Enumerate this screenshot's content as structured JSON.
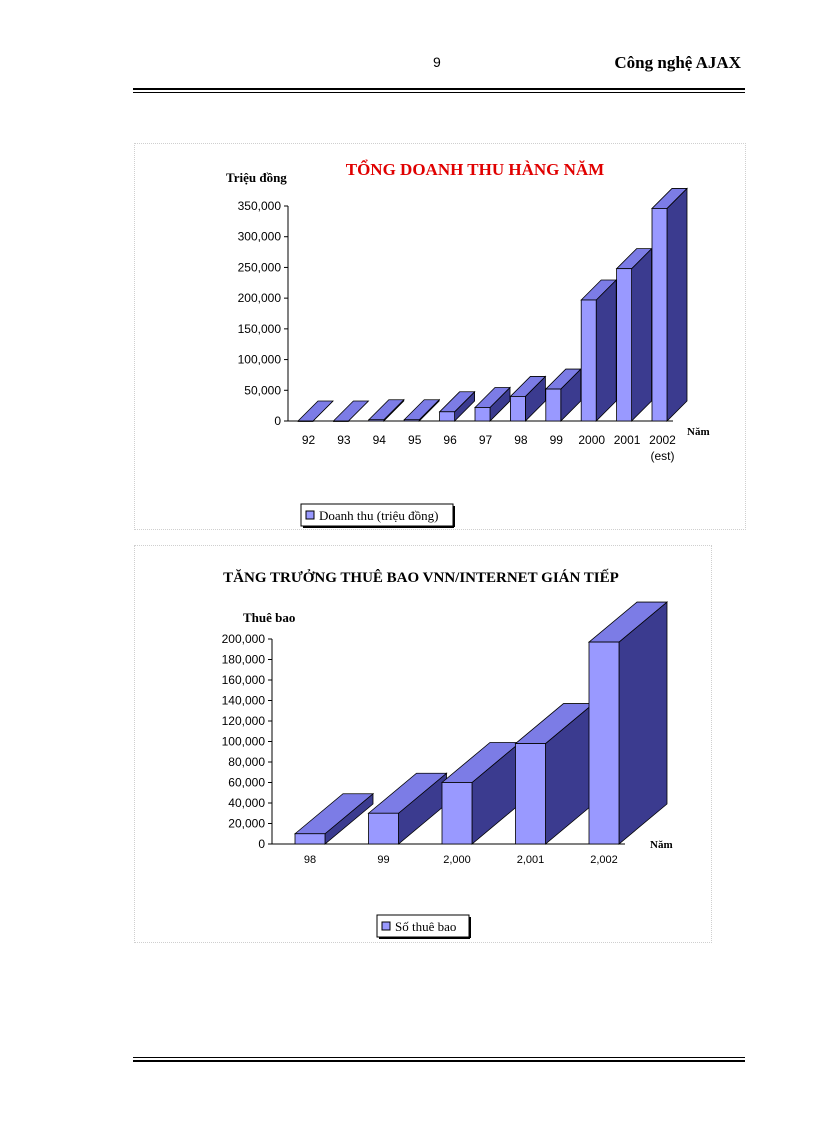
{
  "header": {
    "page_number": "9",
    "title": "Công nghệ AJAX"
  },
  "colors": {
    "bar_front": "#9999ff",
    "bar_top": "#7c7ce6",
    "bar_side": "#3b3b8f",
    "title_red": "#e00000"
  },
  "chart_data": [
    {
      "type": "bar",
      "title": "TỔNG DOANH THU HÀNG NĂM",
      "ylabel": "Triệu đồng",
      "xlabel": "Năm",
      "categories": [
        "92",
        "93",
        "94",
        "95",
        "96",
        "97",
        "98",
        "99",
        "2000",
        "2001",
        "2002\n(est)"
      ],
      "series": [
        {
          "name": "Doanh thu (triệu đồng)",
          "values": [
            0,
            0,
            2000,
            2000,
            15000,
            22000,
            40000,
            52000,
            197000,
            248000,
            346000
          ]
        }
      ],
      "ylim": [
        0,
        350000
      ],
      "yticks": [
        "0",
        "50,000",
        "100,000",
        "150,000",
        "200,000",
        "250,000",
        "300,000",
        "350,000"
      ],
      "legend": "bottom-left",
      "grid": false
    },
    {
      "type": "bar",
      "title": "TĂNG TRƯỞNG THUÊ BAO VNN/INTERNET GIÁN TIẾP",
      "ylabel": "Thuê bao",
      "xlabel": "Năm",
      "categories": [
        "98",
        "99",
        "2,000",
        "2,001",
        "2,002"
      ],
      "series": [
        {
          "name": "Số thuê bao",
          "values": [
            10000,
            30000,
            60000,
            98000,
            197000
          ]
        }
      ],
      "ylim": [
        0,
        200000
      ],
      "yticks": [
        "0",
        "20,000",
        "40,000",
        "60,000",
        "80,000",
        "100,000",
        "120,000",
        "140,000",
        "160,000",
        "180,000",
        "200,000"
      ],
      "legend": "bottom-center",
      "grid": false
    }
  ]
}
